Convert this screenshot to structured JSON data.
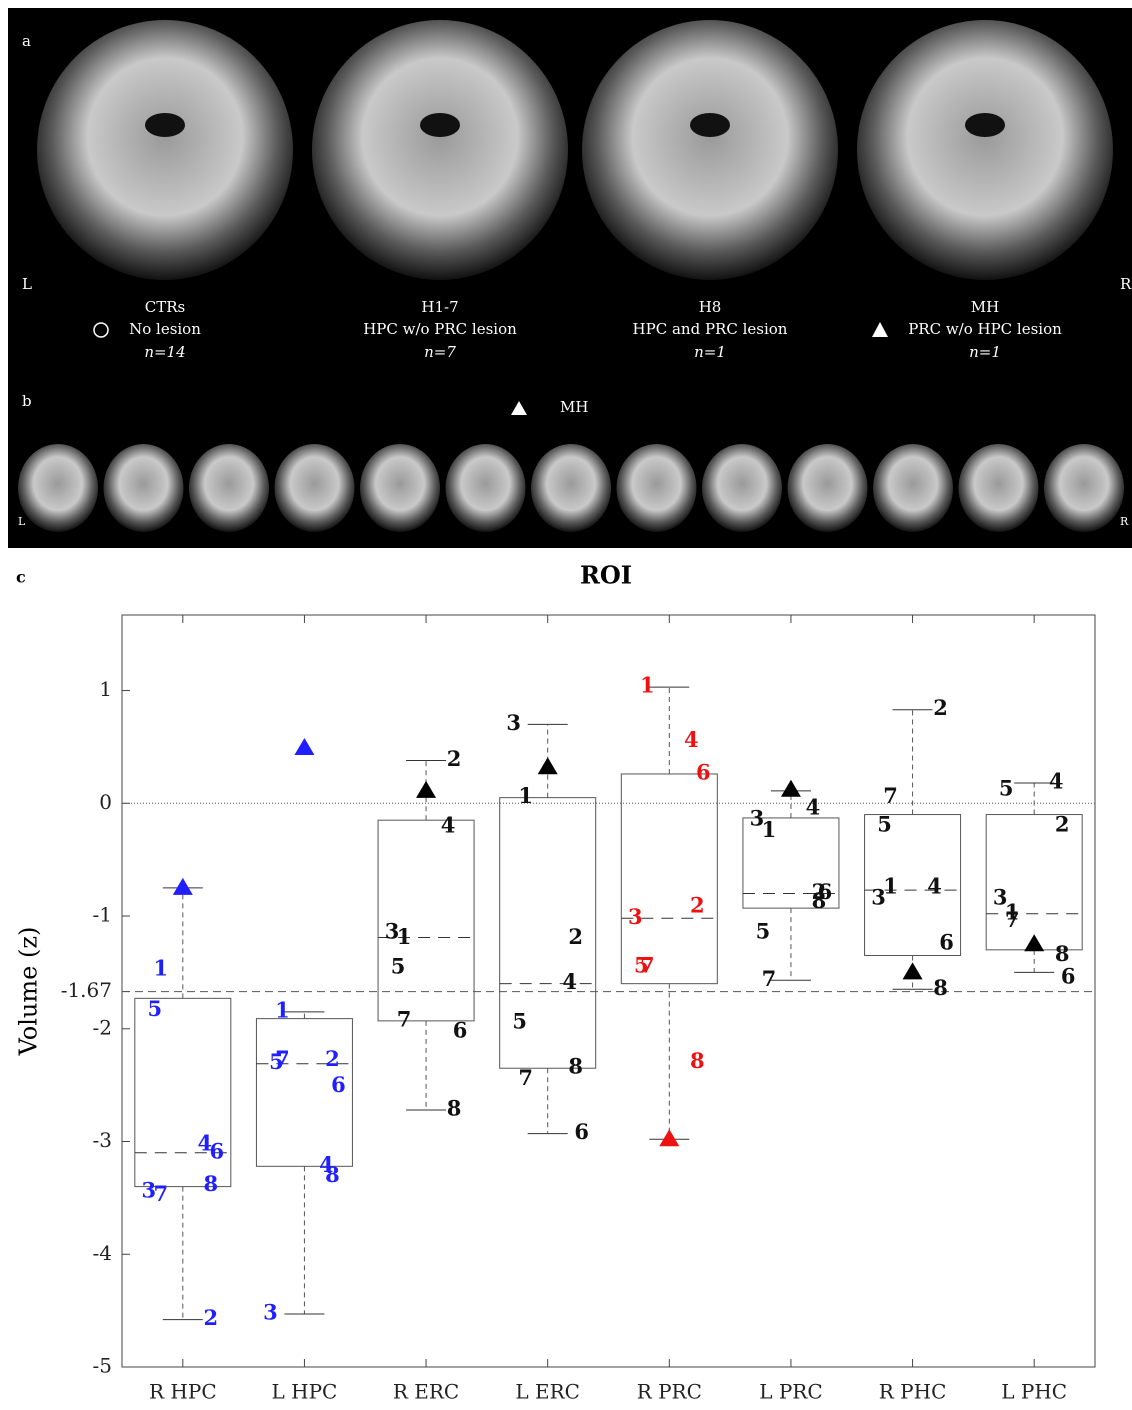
{
  "panels": {
    "a": {
      "label": "a",
      "side_left": "L",
      "side_right": "R",
      "groups": [
        {
          "name": "CTRs",
          "description": "No lesion",
          "n": "n=14"
        },
        {
          "name": "H1-7",
          "description": "HPC w/o PRC lesion",
          "n": "n=7"
        },
        {
          "name": "H8",
          "description": "HPC and PRC lesion",
          "n": "n=1"
        },
        {
          "name": "MH",
          "description": "PRC w/o HPC lesion",
          "n": "n=1"
        }
      ]
    },
    "b": {
      "label": "b",
      "marker_label": "MH",
      "side_left": "L",
      "side_right": "R"
    },
    "c": {
      "label": "c"
    }
  },
  "chart_data": {
    "type": "box",
    "title": "ROI",
    "y_label": "Volume (z)",
    "ylim": [
      -5,
      1.67
    ],
    "yticks": [
      1,
      0,
      -1,
      -1.67,
      -2,
      -3,
      -4,
      -5
    ],
    "hlines": [
      {
        "value": 0,
        "style": "dotted"
      },
      {
        "value": -1.67,
        "style": "dashed"
      }
    ],
    "patients": [
      1,
      2,
      3,
      4,
      5,
      6,
      7,
      8
    ],
    "boxes": [
      {
        "name": "R HPC",
        "color": "#1f1fff",
        "whisker_high": -0.75,
        "q3": -1.73,
        "median": -3.1,
        "q1": -3.4,
        "whisker_low": -4.58,
        "values": [
          -1.48,
          -4.58,
          -3.45,
          -3.03,
          -1.84,
          -3.1,
          -3.48,
          -3.39
        ],
        "MH": -0.75
      },
      {
        "name": "L HPC",
        "color": "#1f1fff",
        "whisker_high": -1.85,
        "q3": -1.91,
        "median": -2.31,
        "q1": -3.22,
        "whisker_low": -4.53,
        "values": [
          -1.85,
          -2.28,
          -4.53,
          -3.22,
          -2.31,
          -2.51,
          -2.28,
          -3.31
        ],
        "MH": 0.49
      },
      {
        "name": "R ERC",
        "color": "#111111",
        "whisker_high": 0.38,
        "q3": -0.15,
        "median": -1.19,
        "q1": -1.93,
        "whisker_low": -2.72,
        "values": [
          -1.2,
          0.38,
          -1.15,
          -0.21,
          -1.46,
          -2.03,
          -1.93,
          -2.72
        ],
        "MH": 0.11
      },
      {
        "name": "L ERC",
        "color": "#111111",
        "whisker_high": 0.7,
        "q3": 0.05,
        "median": -1.6,
        "q1": -2.35,
        "whisker_low": -2.93,
        "values": [
          0.05,
          -1.2,
          0.7,
          -1.6,
          -1.95,
          -2.93,
          -2.45,
          -2.35
        ],
        "MH": 0.32
      },
      {
        "name": "R PRC",
        "color": "#ee1111",
        "whisker_high": 1.03,
        "q3": 0.26,
        "median": -1.02,
        "q1": -1.6,
        "whisker_low": -2.98,
        "values": [
          1.03,
          -0.92,
          -1.02,
          0.55,
          -1.45,
          0.26,
          -1.45,
          -2.3
        ],
        "MH": -2.98
      },
      {
        "name": "L PRC",
        "color": "#111111",
        "whisker_high": 0.11,
        "q3": -0.13,
        "median": -0.8,
        "q1": -0.93,
        "whisker_low": -1.57,
        "values": [
          -0.25,
          -0.8,
          -0.15,
          -0.05,
          -1.15,
          -0.8,
          -1.57,
          -0.88
        ],
        "MH": 0.12
      },
      {
        "name": "R PHC",
        "color": "#111111",
        "whisker_high": 0.83,
        "q3": -0.1,
        "median": -0.77,
        "q1": -1.35,
        "whisker_low": -1.65,
        "values": [
          -0.75,
          0.83,
          -0.85,
          -0.75,
          -0.2,
          -1.25,
          0.05,
          -1.65
        ],
        "MH": -1.5
      },
      {
        "name": "L PHC",
        "color": "#111111",
        "whisker_high": 0.18,
        "q3": -0.1,
        "median": -0.98,
        "q1": -1.3,
        "whisker_low": -1.5,
        "values": [
          -0.98,
          -0.2,
          -0.85,
          0.18,
          0.12,
          -1.55,
          -1.05,
          -1.35
        ],
        "MH": -1.25
      }
    ]
  }
}
